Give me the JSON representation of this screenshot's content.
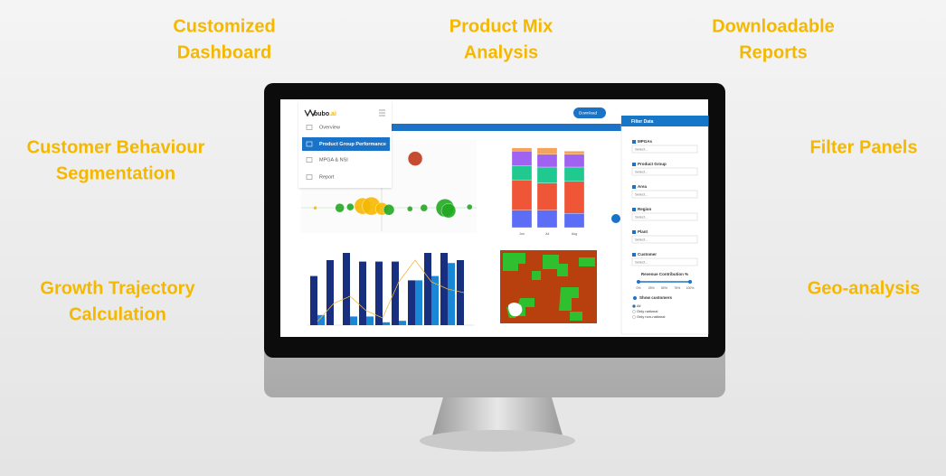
{
  "features": [
    {
      "lines": [
        "Customized",
        "Dashboard"
      ]
    },
    {
      "lines": [
        "Product Mix",
        "Analysis"
      ]
    },
    {
      "lines": [
        "Downloadable",
        "Reports"
      ]
    },
    {
      "lines": [
        "Customer Behaviour",
        "Segmentation"
      ]
    },
    {
      "lines": [
        "Filter Panels"
      ]
    },
    {
      "lines": [
        "Growth Trajectory",
        "Calculation"
      ]
    },
    {
      "lines": [
        "Geo-analysis"
      ]
    }
  ],
  "dashboard": {
    "logo": {
      "name": "bubo",
      "suffix": ".ai"
    },
    "menu": [
      "Overview",
      "Product Group Performance",
      "MPGA & NSI",
      "Report"
    ],
    "download": "Download",
    "filter": {
      "title": "Filter Data",
      "fields": [
        {
          "label": "MPGAs",
          "placeholder": "Select..."
        },
        {
          "label": "Product Group",
          "placeholder": "Select..."
        },
        {
          "label": "Area",
          "placeholder": "Select..."
        },
        {
          "label": "Region",
          "placeholder": "Select..."
        },
        {
          "label": "Plant",
          "placeholder": "Select..."
        },
        {
          "label": "Customer",
          "placeholder": "Select..."
        }
      ],
      "slider": {
        "label": "Revenue Contribution %",
        "ticks": [
          "0%",
          "25%",
          "50%",
          "75%",
          "100%"
        ]
      },
      "show": {
        "label": "Show customers",
        "options": [
          "All",
          "Only national",
          "Only non-national"
        ]
      }
    },
    "bubbles": {
      "x": [
        8,
        22,
        28,
        35,
        40,
        46,
        50,
        62,
        70,
        82,
        84,
        96,
        65
      ],
      "y": [
        27,
        27,
        28,
        29,
        29,
        26,
        25,
        26,
        27,
        27,
        24,
        28,
        80
      ],
      "size": [
        2,
        5,
        4,
        9,
        10,
        7,
        6,
        3,
        4,
        10,
        8,
        3,
        8
      ],
      "colors": [
        "#f5b800",
        "#22a822",
        "#22a822",
        "#f5b800",
        "#f5b800",
        "#f5b800",
        "#22a822",
        "#22a822",
        "#22a822",
        "#22a822",
        "#22a822",
        "#22a822",
        "#c0391b"
      ]
    },
    "stacked": {
      "categories": [
        "Jun",
        "Jul",
        "Aug"
      ],
      "ylim": [
        0,
        110
      ],
      "series": [
        {
          "color": "#5b6ef5",
          "values": [
            22,
            22,
            18
          ]
        },
        {
          "color": "#ef5638",
          "values": [
            38,
            34,
            40
          ]
        },
        {
          "color": "#1fc98f",
          "values": [
            18,
            20,
            18
          ]
        },
        {
          "color": "#a062f0",
          "values": [
            18,
            16,
            16
          ]
        },
        {
          "color": "#f5a25a",
          "values": [
            4,
            8,
            4
          ]
        }
      ]
    },
    "bars": {
      "ylim": [
        0,
        100
      ],
      "series": [
        {
          "color": "#172f7e",
          "values": [
            68,
            90,
            100,
            88,
            88,
            88,
            62,
            100,
            100,
            90
          ]
        },
        {
          "color": "#1a86d6",
          "values": [
            14,
            0,
            12,
            12,
            4,
            6,
            62,
            68,
            86,
            0
          ]
        }
      ],
      "line": {
        "color": "#f0b840",
        "values": [
          5,
          30,
          40,
          20,
          10,
          60,
          90,
          60,
          50,
          45
        ]
      }
    }
  }
}
